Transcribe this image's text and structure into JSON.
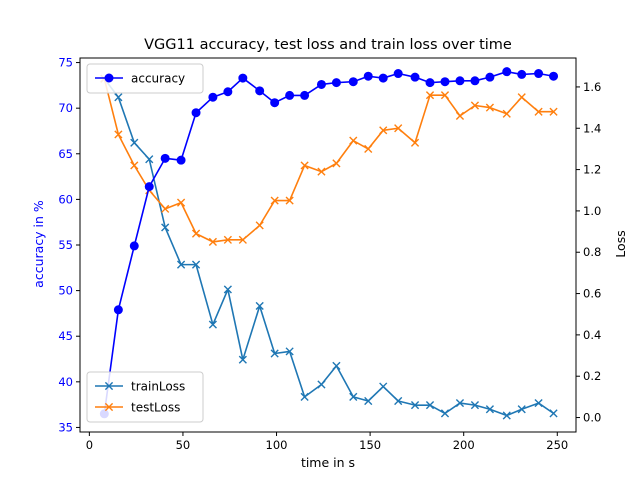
{
  "chart_data": {
    "type": "line",
    "title": "VGG11 accuracy, test loss and train loss over time",
    "xlabel": "time in s",
    "ylabel_left": "accuracy in %",
    "ylabel_right": "Loss",
    "xlim": [
      -5,
      260
    ],
    "ylim_left": [
      34.5,
      75.5
    ],
    "ylim_right": [
      -0.07,
      1.74
    ],
    "x_ticks": [
      0,
      50,
      100,
      150,
      200,
      250
    ],
    "y_left_ticks": [
      35,
      40,
      45,
      50,
      55,
      60,
      65,
      70,
      75
    ],
    "y_right_ticks": [
      0.0,
      0.2,
      0.4,
      0.6,
      0.8,
      1.0,
      1.2,
      1.4,
      1.6
    ],
    "grid": false,
    "colors": {
      "accuracy": "#0000ff",
      "trainLoss": "#1f77b4",
      "testLoss": "#ff7f0e",
      "left_axis_text": "#0000ff",
      "axis": "#000000"
    },
    "legend_upper": {
      "placement": "upper-left",
      "entries": [
        "accuracy"
      ]
    },
    "legend_lower": {
      "placement": "lower-left",
      "entries": [
        "trainLoss",
        "testLoss"
      ]
    },
    "series": [
      {
        "name": "accuracy",
        "axis": "left",
        "marker": "circle",
        "x": [
          8,
          15.5,
          24,
          32,
          40.5,
          49,
          57,
          66,
          74,
          82,
          91,
          99,
          107,
          115,
          124,
          132,
          141,
          149,
          157,
          165,
          174,
          182,
          190,
          198,
          206,
          214,
          223,
          231,
          240,
          248
        ],
        "y": [
          36.5,
          47.9,
          54.9,
          61.4,
          64.5,
          64.3,
          69.5,
          71.2,
          71.8,
          73.3,
          71.9,
          70.6,
          71.4,
          71.4,
          72.6,
          72.8,
          72.9,
          73.5,
          73.3,
          73.8,
          73.4,
          72.8,
          72.9,
          73.0,
          73.0,
          73.4,
          74.0,
          73.7,
          73.8,
          73.5
        ]
      },
      {
        "name": "trainLoss",
        "axis": "right",
        "marker": "x",
        "x": [
          8,
          15.5,
          24,
          32,
          40.5,
          49,
          57,
          66,
          74,
          82,
          91,
          99,
          107,
          115,
          124,
          132,
          141,
          149,
          157,
          165,
          174,
          182,
          190,
          198,
          206,
          214,
          223,
          231,
          240,
          248
        ],
        "y": [
          1.64,
          1.55,
          1.33,
          1.25,
          0.92,
          0.74,
          0.74,
          0.45,
          0.62,
          0.28,
          0.54,
          0.31,
          0.32,
          0.1,
          0.16,
          0.25,
          0.1,
          0.08,
          0.15,
          0.08,
          0.06,
          0.06,
          0.02,
          0.07,
          0.06,
          0.04,
          0.01,
          0.04,
          0.07,
          0.02
        ]
      },
      {
        "name": "testLoss",
        "axis": "right",
        "marker": "x",
        "x": [
          8,
          15.5,
          24,
          32,
          40.5,
          49,
          57,
          66,
          74,
          82,
          91,
          99,
          107,
          115,
          124,
          132,
          141,
          149,
          157,
          165,
          174,
          182,
          190,
          198,
          206,
          214,
          223,
          231,
          240,
          248
        ],
        "y": [
          1.64,
          1.37,
          1.22,
          1.1,
          1.01,
          1.04,
          0.89,
          0.85,
          0.86,
          0.86,
          0.93,
          1.05,
          1.05,
          1.22,
          1.19,
          1.23,
          1.34,
          1.3,
          1.39,
          1.4,
          1.33,
          1.56,
          1.56,
          1.46,
          1.51,
          1.5,
          1.47,
          1.55,
          1.48,
          1.48
        ]
      }
    ]
  }
}
